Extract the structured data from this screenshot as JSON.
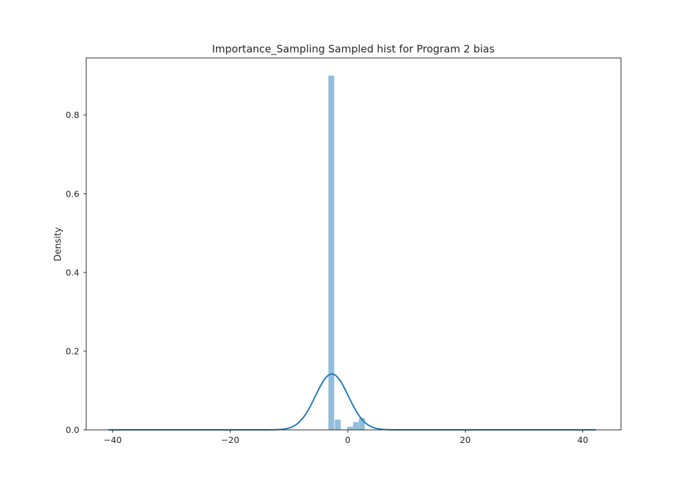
{
  "chart_data": {
    "type": "bar",
    "title": "Importance_Sampling Sampled hist for Program 2 bias",
    "xlabel": "",
    "ylabel": "Density",
    "xlim": [
      -44.5,
      46.5
    ],
    "ylim": [
      0,
      0.945
    ],
    "xticks": [
      -40,
      -20,
      0,
      20,
      40
    ],
    "xtick_labels": [
      "−40",
      "−20",
      "0",
      "20",
      "40"
    ],
    "yticks": [
      0.0,
      0.2,
      0.4,
      0.6,
      0.8
    ],
    "ytick_labels": [
      "0.0",
      "0.2",
      "0.4",
      "0.6",
      "0.8"
    ],
    "grid": false,
    "histogram": {
      "color": "#92bedb",
      "bins": [
        {
          "x0": -3.3,
          "x1": -2.3,
          "density": 0.9
        },
        {
          "x0": -2.2,
          "x1": -1.2,
          "density": 0.026
        },
        {
          "x0": -0.1,
          "x1": 0.9,
          "density": 0.008
        },
        {
          "x0": 0.9,
          "x1": 1.9,
          "density": 0.02
        },
        {
          "x0": 1.9,
          "x1": 2.9,
          "density": 0.03
        }
      ]
    },
    "kde": {
      "color": "#1f77b4",
      "x_range": [
        -40.7,
        42.2
      ],
      "mean": -2.7,
      "std": 2.8,
      "peak_density": 0.142
    }
  }
}
